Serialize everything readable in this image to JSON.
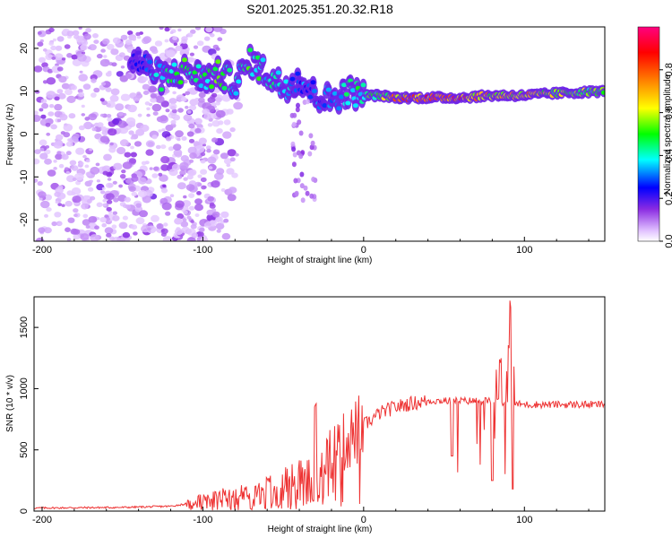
{
  "title": "S201.2025.351.20.32.R18",
  "chart_data": [
    {
      "type": "heatmap",
      "xlabel": "Height of straight line (km)",
      "ylabel": "Frequency (Hz)",
      "xlim": [
        -205,
        150
      ],
      "ylim": [
        -25,
        25
      ],
      "x_ticks": [
        "-200",
        "-100",
        "0",
        "100"
      ],
      "x_tick_values": [
        -200,
        -100,
        0,
        100
      ],
      "y_ticks": [
        "20",
        "10",
        "0",
        "-10",
        "-20"
      ],
      "y_tick_values": [
        20,
        10,
        0,
        -10,
        -20
      ],
      "colorbar": {
        "label": "Normalized spectral amplitude",
        "ticks": [
          "0.0",
          "0.2",
          "0.4",
          "0.6",
          "0.8"
        ],
        "tick_values": [
          0.0,
          0.2,
          0.4,
          0.6,
          0.8
        ],
        "range": [
          0,
          1
        ],
        "colors": [
          "#ffffff",
          "#d8b0ff",
          "#8a2be2",
          "#0000ff",
          "#00ffff",
          "#00ff00",
          "#ffff00",
          "#ff8000",
          "#ff0000",
          "#ff0080"
        ]
      },
      "ridge": {
        "description_points_x": [
          -140,
          -125,
          -110,
          -100,
          -90,
          -80,
          -70,
          -60,
          -50,
          -40,
          -30,
          -20,
          -10,
          0,
          10,
          20,
          40,
          60,
          80,
          100,
          120,
          150
        ],
        "description_points_y": [
          17,
          13,
          15,
          13,
          14,
          12,
          17,
          14,
          11,
          13,
          9,
          8,
          10,
          9,
          9,
          8.5,
          8.5,
          8.5,
          9,
          9,
          9.5,
          10
        ],
        "peak_amplitude": [
          0.25,
          0.45,
          0.5,
          0.45,
          0.55,
          0.4,
          0.5,
          0.45,
          0.4,
          0.35,
          0.3,
          0.35,
          0.45,
          0.5,
          0.55,
          0.75,
          0.9,
          0.85,
          0.7,
          0.75,
          0.6,
          0.55
        ]
      }
    },
    {
      "type": "line",
      "xlabel": "Height of straight line (km)",
      "ylabel": "SNR (10 * v/v)",
      "xlim": [
        -205,
        150
      ],
      "ylim": [
        0,
        1750
      ],
      "x_ticks": [
        "-200",
        "-100",
        "0",
        "100"
      ],
      "x_tick_values": [
        -200,
        -100,
        0,
        100
      ],
      "y_ticks": [
        "0",
        "500",
        "1000",
        "1500"
      ],
      "y_tick_values": [
        0,
        500,
        1000,
        1500
      ],
      "color": "#ee3333",
      "envelope": {
        "x": [
          -205,
          -150,
          -120,
          -110,
          -100,
          -80,
          -60,
          -40,
          -30,
          -20,
          -10,
          0,
          10,
          20,
          30,
          40,
          50,
          60,
          70,
          80,
          90,
          100,
          120,
          150
        ],
        "y": [
          25,
          30,
          40,
          60,
          100,
          150,
          200,
          300,
          380,
          480,
          580,
          700,
          800,
          850,
          880,
          900,
          900,
          900,
          900,
          900,
          880,
          870,
          870,
          870
        ]
      },
      "features": [
        {
          "x": -30,
          "y": 880,
          "kind": "spike"
        },
        {
          "x": 55,
          "y": 450,
          "kind": "dip"
        },
        {
          "x": 80,
          "y": 250,
          "kind": "dip"
        },
        {
          "x": 85,
          "y": 1270,
          "kind": "spike"
        },
        {
          "x": 91,
          "y": 1750,
          "kind": "spike"
        },
        {
          "x": 93,
          "y": 180,
          "kind": "dip"
        }
      ]
    }
  ]
}
